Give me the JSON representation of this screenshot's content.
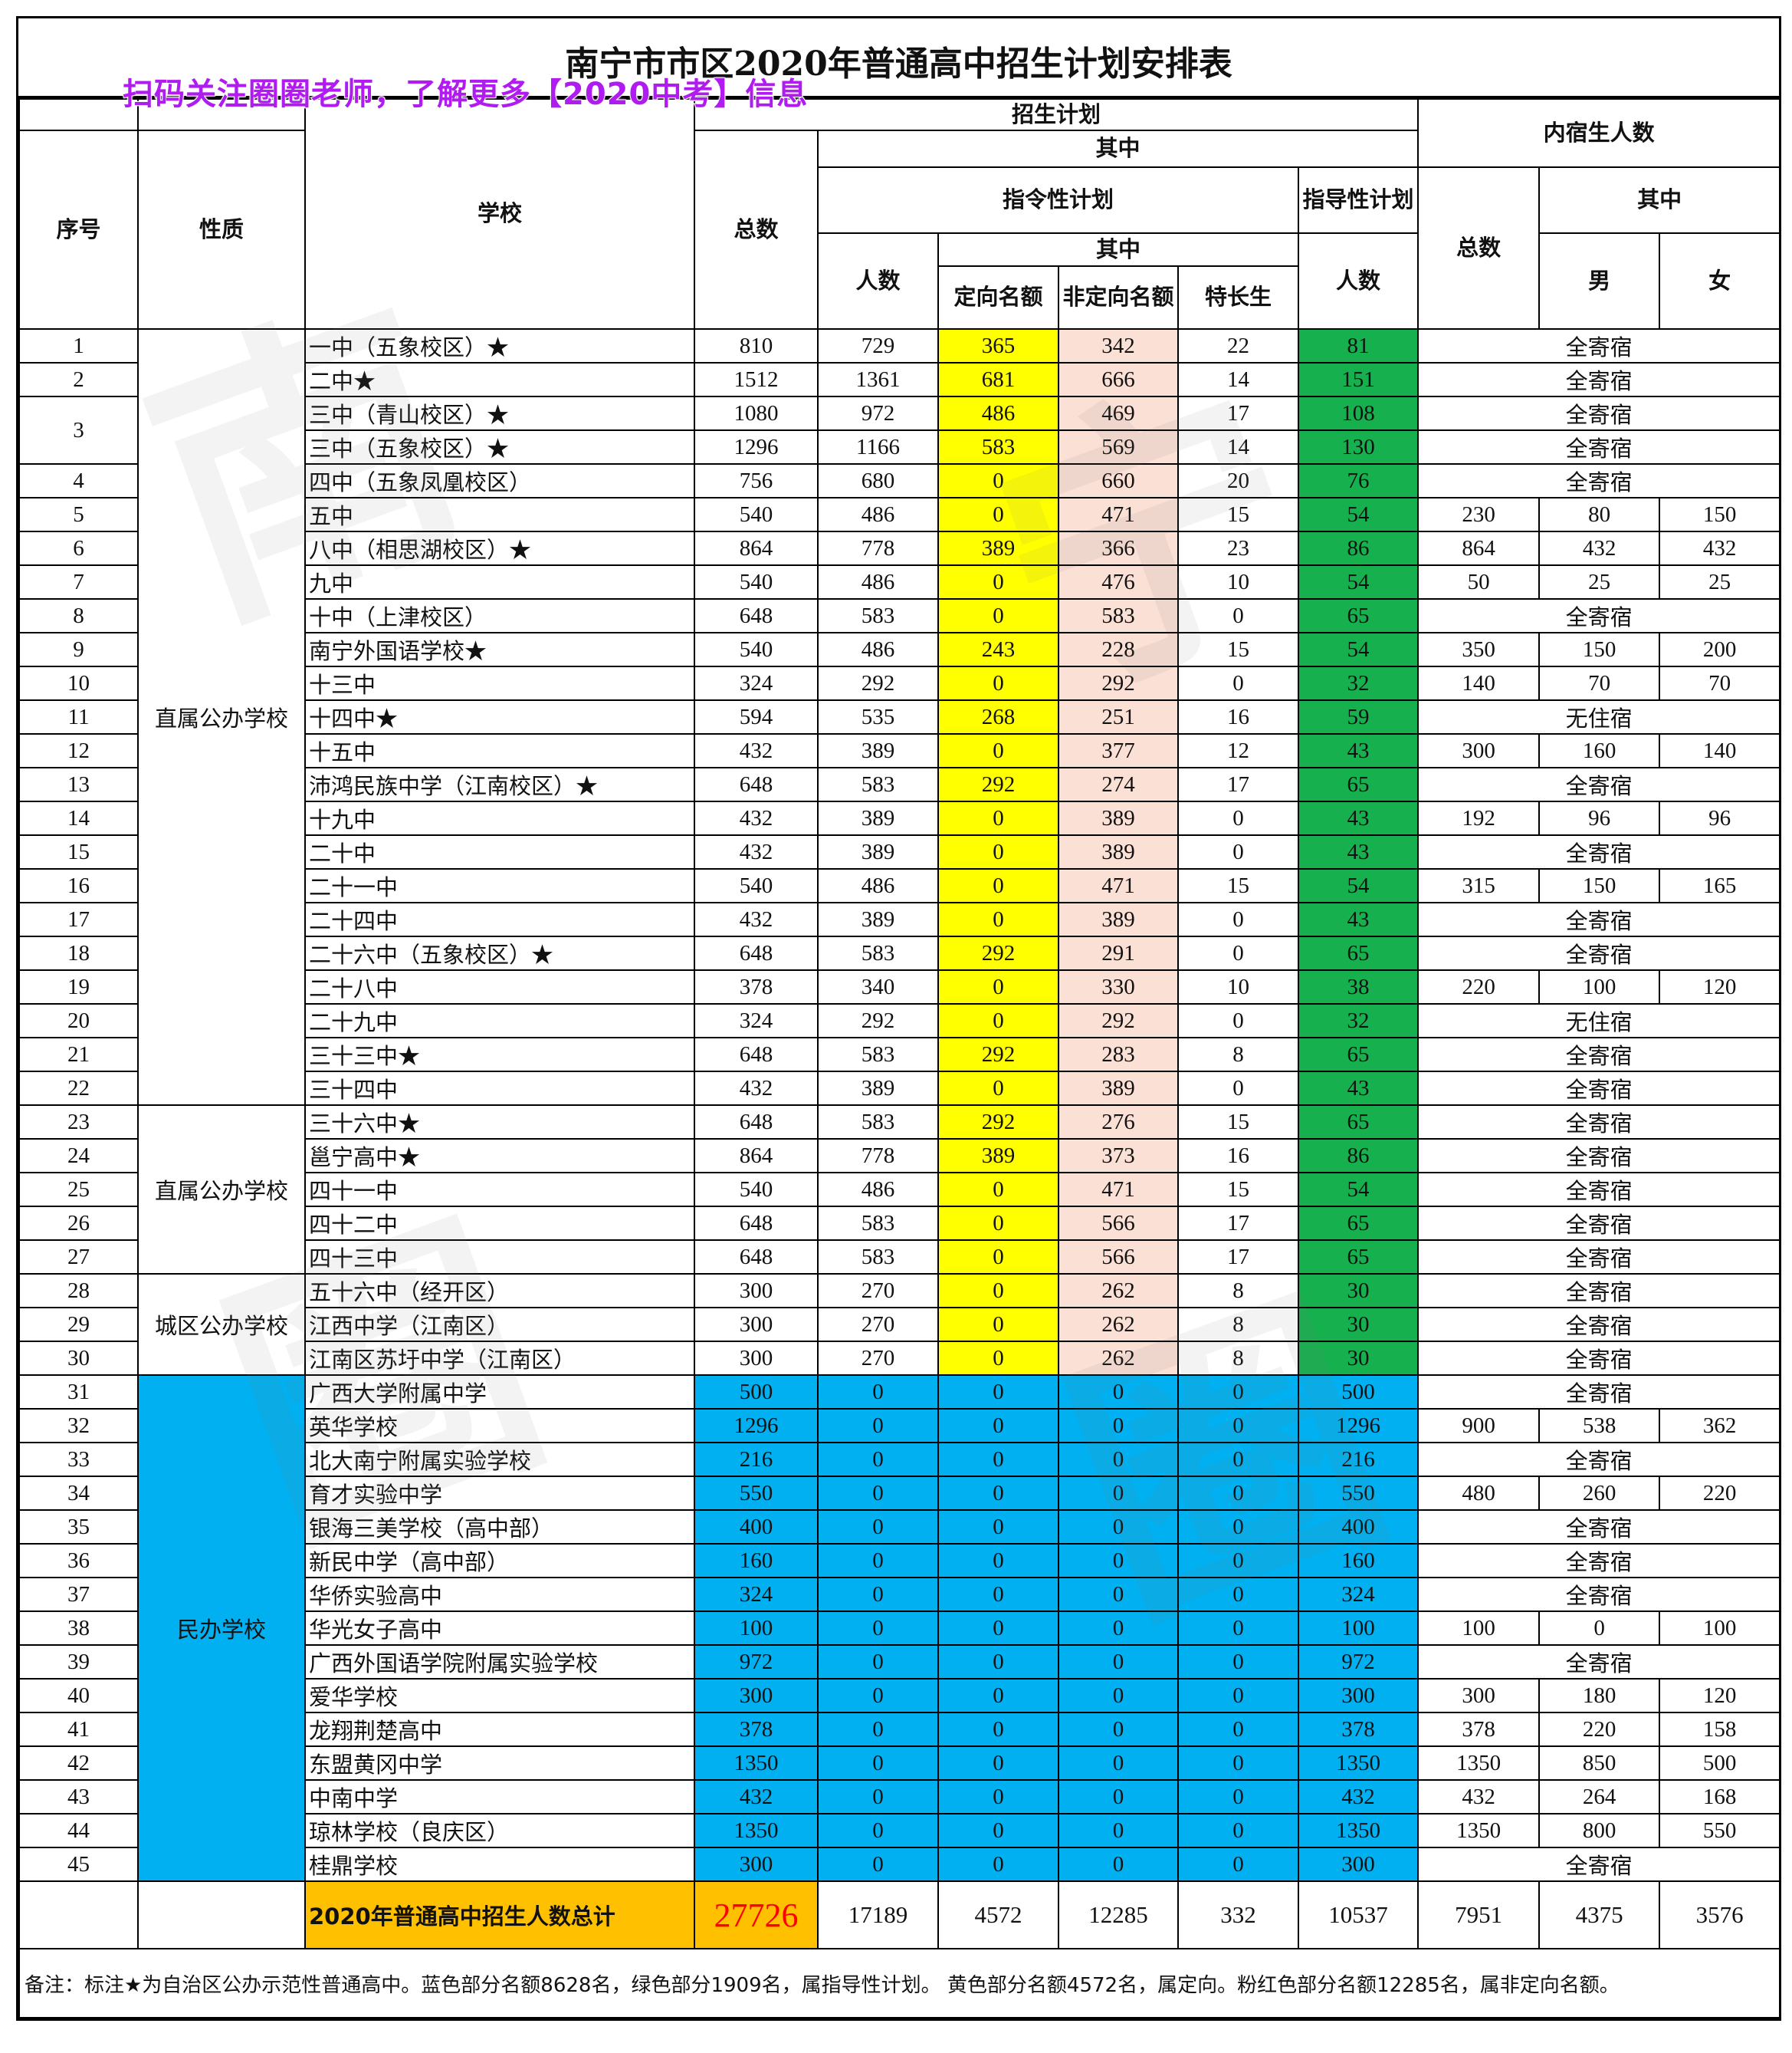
{
  "title": "南宁市市区2020年普通高中招生计划安排表",
  "promo": "扫码关注圈圈老师，了解更多【2020中考】信息",
  "watermark": "南宁圈",
  "colors": {
    "directed": "#ffff00",
    "non_directed": "#fbe0d5",
    "guidance": "#17b04f",
    "private": "#00b0f0",
    "total": "#ffc000",
    "grand_total_text": "#ff0000"
  },
  "header": {
    "seq": "序号",
    "type": "性质",
    "school": "学校",
    "plan": "招生计划",
    "total": "总数",
    "of_which": "其中",
    "mandatory": "指令性计划",
    "guidance": "指导性计划",
    "count": "人数",
    "of_which2": "其中",
    "directed": "定向名额",
    "non_directed": "非定向名额",
    "special": "特长生",
    "guidance_count": "人数",
    "boarding": "内宿生人数",
    "boarding_total": "总数",
    "boarding_of_which": "其中",
    "male": "男",
    "female": "女"
  },
  "groups": [
    {
      "label": "直属公办学校",
      "rows": 23,
      "private": false
    },
    {
      "label": "直属公办学校",
      "rows": 5,
      "private": false
    },
    {
      "label": "城区公办学校",
      "rows": 3,
      "private": false
    },
    {
      "label": "民办学校",
      "rows": 15,
      "private": true
    }
  ],
  "rows": [
    {
      "seq": "1",
      "school": "一中（五象校区）★",
      "v": [
        "810",
        "729",
        "365",
        "342",
        "22",
        "81"
      ],
      "dorm": "全寄宿"
    },
    {
      "seq": "2",
      "school": "二中★",
      "v": [
        "1512",
        "1361",
        "681",
        "666",
        "14",
        "151"
      ],
      "dorm": "全寄宿"
    },
    {
      "seq": "3",
      "span": 2,
      "school": "三中（青山校区）★",
      "v": [
        "1080",
        "972",
        "486",
        "469",
        "17",
        "108"
      ],
      "dorm": "全寄宿"
    },
    {
      "seq": "",
      "school": "三中（五象校区）★",
      "v": [
        "1296",
        "1166",
        "583",
        "569",
        "14",
        "130"
      ],
      "dorm": "全寄宿"
    },
    {
      "seq": "4",
      "school": "四中（五象凤凰校区）",
      "v": [
        "756",
        "680",
        "0",
        "660",
        "20",
        "76"
      ],
      "dorm": "全寄宿"
    },
    {
      "seq": "5",
      "school": "五中",
      "v": [
        "540",
        "486",
        "0",
        "471",
        "15",
        "54"
      ],
      "dorm": [
        "230",
        "80",
        "150"
      ]
    },
    {
      "seq": "6",
      "school": "八中（相思湖校区）★",
      "v": [
        "864",
        "778",
        "389",
        "366",
        "23",
        "86"
      ],
      "dorm": [
        "864",
        "432",
        "432"
      ]
    },
    {
      "seq": "7",
      "school": "九中",
      "v": [
        "540",
        "486",
        "0",
        "476",
        "10",
        "54"
      ],
      "dorm": [
        "50",
        "25",
        "25"
      ]
    },
    {
      "seq": "8",
      "school": "十中（上津校区）",
      "v": [
        "648",
        "583",
        "0",
        "583",
        "0",
        "65"
      ],
      "dorm": "全寄宿"
    },
    {
      "seq": "9",
      "school": "南宁外国语学校★",
      "v": [
        "540",
        "486",
        "243",
        "228",
        "15",
        "54"
      ],
      "dorm": [
        "350",
        "150",
        "200"
      ]
    },
    {
      "seq": "10",
      "school": "十三中",
      "v": [
        "324",
        "292",
        "0",
        "292",
        "0",
        "32"
      ],
      "dorm": [
        "140",
        "70",
        "70"
      ]
    },
    {
      "seq": "11",
      "school": "十四中★",
      "v": [
        "594",
        "535",
        "268",
        "251",
        "16",
        "59"
      ],
      "dorm": "无住宿"
    },
    {
      "seq": "12",
      "school": "十五中",
      "v": [
        "432",
        "389",
        "0",
        "377",
        "12",
        "43"
      ],
      "dorm": [
        "300",
        "160",
        "140"
      ]
    },
    {
      "seq": "13",
      "school": "沛鸿民族中学（江南校区）★",
      "v": [
        "648",
        "583",
        "292",
        "274",
        "17",
        "65"
      ],
      "dorm": "全寄宿"
    },
    {
      "seq": "14",
      "school": "十九中",
      "v": [
        "432",
        "389",
        "0",
        "389",
        "0",
        "43"
      ],
      "dorm": [
        "192",
        "96",
        "96"
      ]
    },
    {
      "seq": "15",
      "school": "二十中",
      "v": [
        "432",
        "389",
        "0",
        "389",
        "0",
        "43"
      ],
      "dorm": "全寄宿"
    },
    {
      "seq": "16",
      "school": "二十一中",
      "v": [
        "540",
        "486",
        "0",
        "471",
        "15",
        "54"
      ],
      "dorm": [
        "315",
        "150",
        "165"
      ]
    },
    {
      "seq": "17",
      "school": "二十四中",
      "v": [
        "432",
        "389",
        "0",
        "389",
        "0",
        "43"
      ],
      "dorm": "全寄宿"
    },
    {
      "seq": "18",
      "school": "二十六中（五象校区）★",
      "v": [
        "648",
        "583",
        "292",
        "291",
        "0",
        "65"
      ],
      "dorm": "全寄宿"
    },
    {
      "seq": "19",
      "school": "二十八中",
      "v": [
        "378",
        "340",
        "0",
        "330",
        "10",
        "38"
      ],
      "dorm": [
        "220",
        "100",
        "120"
      ]
    },
    {
      "seq": "20",
      "school": "二十九中",
      "v": [
        "324",
        "292",
        "0",
        "292",
        "0",
        "32"
      ],
      "dorm": "无住宿"
    },
    {
      "seq": "21",
      "school": "三十三中★",
      "v": [
        "648",
        "583",
        "292",
        "283",
        "8",
        "65"
      ],
      "dorm": "全寄宿"
    },
    {
      "seq": "22",
      "school": "三十四中",
      "v": [
        "432",
        "389",
        "0",
        "389",
        "0",
        "43"
      ],
      "dorm": "全寄宿"
    },
    {
      "seq": "23",
      "school": "三十六中★",
      "v": [
        "648",
        "583",
        "292",
        "276",
        "15",
        "65"
      ],
      "dorm": "全寄宿"
    },
    {
      "seq": "24",
      "school": "邕宁高中★",
      "v": [
        "864",
        "778",
        "389",
        "373",
        "16",
        "86"
      ],
      "dorm": "全寄宿"
    },
    {
      "seq": "25",
      "school": "四十一中",
      "v": [
        "540",
        "486",
        "0",
        "471",
        "15",
        "54"
      ],
      "dorm": "全寄宿"
    },
    {
      "seq": "26",
      "school": "四十二中",
      "v": [
        "648",
        "583",
        "0",
        "566",
        "17",
        "65"
      ],
      "dorm": "全寄宿"
    },
    {
      "seq": "27",
      "school": "四十三中",
      "v": [
        "648",
        "583",
        "0",
        "566",
        "17",
        "65"
      ],
      "dorm": "全寄宿"
    },
    {
      "seq": "28",
      "school": "五十六中（经开区）",
      "v": [
        "300",
        "270",
        "0",
        "262",
        "8",
        "30"
      ],
      "dorm": "全寄宿"
    },
    {
      "seq": "29",
      "school": "江西中学（江南区）",
      "v": [
        "300",
        "270",
        "0",
        "262",
        "8",
        "30"
      ],
      "dorm": "全寄宿"
    },
    {
      "seq": "30",
      "school": "江南区苏圩中学（江南区）",
      "v": [
        "300",
        "270",
        "0",
        "262",
        "8",
        "30"
      ],
      "dorm": "全寄宿"
    },
    {
      "seq": "31",
      "school": "广西大学附属中学",
      "v": [
        "500",
        "0",
        "0",
        "0",
        "0",
        "500"
      ],
      "dorm": "全寄宿"
    },
    {
      "seq": "32",
      "school": "英华学校",
      "v": [
        "1296",
        "0",
        "0",
        "0",
        "0",
        "1296"
      ],
      "dorm": [
        "900",
        "538",
        "362"
      ]
    },
    {
      "seq": "33",
      "school": "北大南宁附属实验学校",
      "v": [
        "216",
        "0",
        "0",
        "0",
        "0",
        "216"
      ],
      "dorm": "全寄宿"
    },
    {
      "seq": "34",
      "school": "育才实验中学",
      "v": [
        "550",
        "0",
        "0",
        "0",
        "0",
        "550"
      ],
      "dorm": [
        "480",
        "260",
        "220"
      ]
    },
    {
      "seq": "35",
      "school": "银海三美学校（高中部）",
      "v": [
        "400",
        "0",
        "0",
        "0",
        "0",
        "400"
      ],
      "dorm": "全寄宿"
    },
    {
      "seq": "36",
      "school": "新民中学（高中部）",
      "v": [
        "160",
        "0",
        "0",
        "0",
        "0",
        "160"
      ],
      "dorm": "全寄宿"
    },
    {
      "seq": "37",
      "school": "华侨实验高中",
      "v": [
        "324",
        "0",
        "0",
        "0",
        "0",
        "324"
      ],
      "dorm": "全寄宿"
    },
    {
      "seq": "38",
      "school": "华光女子高中",
      "v": [
        "100",
        "0",
        "0",
        "0",
        "0",
        "100"
      ],
      "dorm": [
        "100",
        "0",
        "100"
      ]
    },
    {
      "seq": "39",
      "school": "广西外国语学院附属实验学校",
      "v": [
        "972",
        "0",
        "0",
        "0",
        "0",
        "972"
      ],
      "dorm": "全寄宿"
    },
    {
      "seq": "40",
      "school": "爱华学校",
      "v": [
        "300",
        "0",
        "0",
        "0",
        "0",
        "300"
      ],
      "dorm": [
        "300",
        "180",
        "120"
      ]
    },
    {
      "seq": "41",
      "school": "龙翔荆楚高中",
      "v": [
        "378",
        "0",
        "0",
        "0",
        "0",
        "378"
      ],
      "dorm": [
        "378",
        "220",
        "158"
      ]
    },
    {
      "seq": "42",
      "school": "东盟黄冈中学",
      "v": [
        "1350",
        "0",
        "0",
        "0",
        "0",
        "1350"
      ],
      "dorm": [
        "1350",
        "850",
        "500"
      ]
    },
    {
      "seq": "43",
      "school": "中南中学",
      "v": [
        "432",
        "0",
        "0",
        "0",
        "0",
        "432"
      ],
      "dorm": [
        "432",
        "264",
        "168"
      ]
    },
    {
      "seq": "44",
      "school": "琼林学校（良庆区）",
      "v": [
        "1350",
        "0",
        "0",
        "0",
        "0",
        "1350"
      ],
      "dorm": [
        "1350",
        "800",
        "550"
      ]
    },
    {
      "seq": "45",
      "school": "桂鼎学校",
      "v": [
        "300",
        "0",
        "0",
        "0",
        "0",
        "300"
      ],
      "dorm": "全寄宿"
    }
  ],
  "totals": {
    "label": "2020年普通高中招生人数总计",
    "total": "27726",
    "values": [
      "17189",
      "4572",
      "12285",
      "332",
      "10537",
      "7951",
      "4375",
      "3576"
    ]
  },
  "note": "备注：标注★为自治区公办示范性普通高中。蓝色部分名额8628名，绿色部分1909名，属指导性计划。 黄色部分名额4572名，属定向。粉红色部分名额12285名，属非定向名额。"
}
